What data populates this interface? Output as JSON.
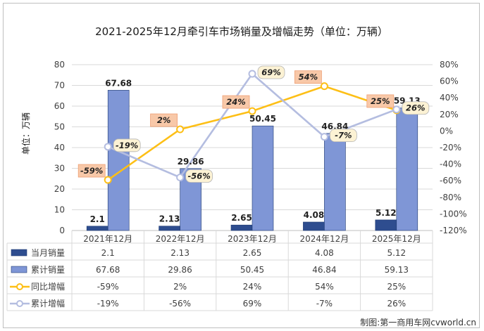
{
  "chart_data": {
    "type": "bar",
    "title": "2021-2025年12月牵引车市场销量及增幅走势（单位：万辆）",
    "ylabel": "单位：万辆",
    "categories": [
      "2021年12月",
      "2022年12月",
      "2023年12月",
      "2024年12月",
      "2025年12月"
    ],
    "ylim": [
      0,
      80
    ],
    "yticks": [
      0,
      10,
      20,
      30,
      40,
      50,
      60,
      70,
      80
    ],
    "y2lim": [
      -120,
      80
    ],
    "y2ticks": [
      -120,
      -100,
      -80,
      -60,
      -40,
      -20,
      0,
      20,
      40,
      60,
      80
    ],
    "y2tick_labels": [
      "-120%",
      "-100%",
      "-80%",
      "-60%",
      "-40%",
      "-20%",
      "0%",
      "20%",
      "40%",
      "60%",
      "80%"
    ],
    "series": [
      {
        "name": "当月销量",
        "kind": "bar",
        "axis": "left",
        "color": "#2e4d8f",
        "values": [
          2.1,
          2.13,
          2.65,
          4.08,
          5.12
        ],
        "labels": [
          "2.1",
          "2.13",
          "2.65",
          "4.08",
          "5.12"
        ]
      },
      {
        "name": "累计销量",
        "kind": "bar",
        "axis": "left",
        "color": "#7f96d6",
        "values": [
          67.68,
          29.86,
          50.45,
          46.84,
          59.13
        ],
        "labels": [
          "67.68",
          "29.86",
          "50.45",
          "46.84",
          "59.13"
        ]
      },
      {
        "name": "同比增幅",
        "kind": "line",
        "axis": "right",
        "color": "#fdbf16",
        "values": [
          -59,
          2,
          24,
          54,
          25
        ],
        "labels": [
          "-59%",
          "2%",
          "24%",
          "54%",
          "25%"
        ]
      },
      {
        "name": "累计增幅",
        "kind": "line",
        "axis": "right",
        "color": "#b4bde0",
        "values": [
          -19,
          -56,
          69,
          -7,
          26
        ],
        "labels": [
          "-19%",
          "-56%",
          "69%",
          "-7%",
          "26%"
        ]
      }
    ],
    "legend": "data-table-below"
  },
  "credit": "制图:第一商用车网cvworld.cn"
}
